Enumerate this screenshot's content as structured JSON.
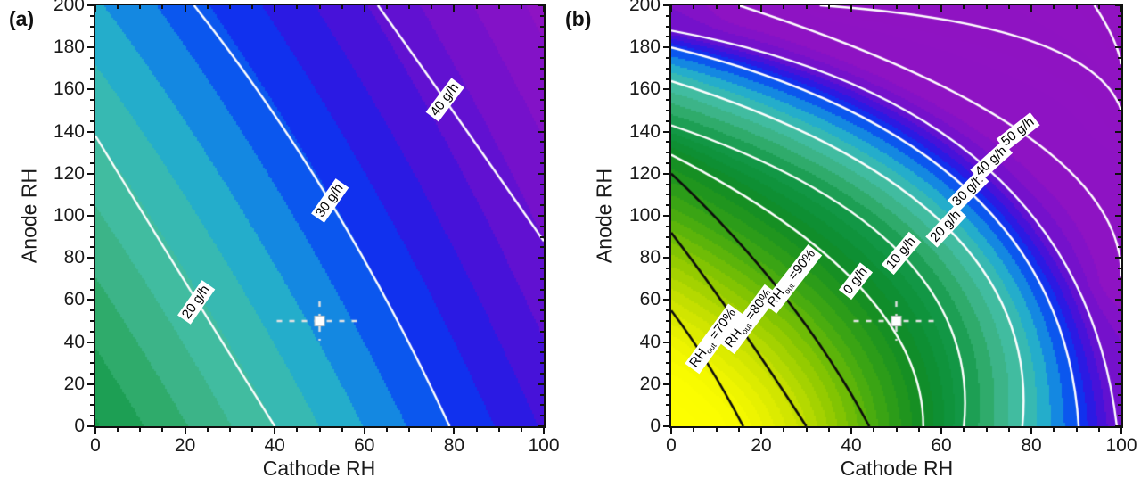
{
  "figure": {
    "background": "#ffffff",
    "description": "Two filled contour maps of water removal rate (g/h) versus Cathode RH and Anode RH"
  },
  "colormap": {
    "band_step": 2.5,
    "stops": [
      [
        -55,
        "#ffff00"
      ],
      [
        -45,
        "#fbfd00"
      ],
      [
        -40,
        "#f2f700"
      ],
      [
        -35,
        "#e2ee00"
      ],
      [
        -30,
        "#cce300"
      ],
      [
        -25,
        "#add600"
      ],
      [
        -20,
        "#8cc800"
      ],
      [
        -15,
        "#66b808"
      ],
      [
        -10,
        "#41a812"
      ],
      [
        -5,
        "#26991c"
      ],
      [
        0,
        "#118c26"
      ],
      [
        5,
        "#0e9138"
      ],
      [
        10,
        "#14994a"
      ],
      [
        13,
        "#2ba863"
      ],
      [
        16,
        "#3cb486"
      ],
      [
        19,
        "#42bda3"
      ],
      [
        22,
        "#34b8b8"
      ],
      [
        24,
        "#22acce"
      ],
      [
        26,
        "#158ee0"
      ],
      [
        28,
        "#0d65ec"
      ],
      [
        30,
        "#0a40f2"
      ],
      [
        32,
        "#1628ec"
      ],
      [
        34,
        "#2e18e2"
      ],
      [
        36,
        "#4513da"
      ],
      [
        38,
        "#5a12d4"
      ],
      [
        40,
        "#6d11ce"
      ],
      [
        42.5,
        "#7e12c9"
      ],
      [
        46,
        "#8e13c4"
      ],
      [
        78,
        "#9213c1"
      ]
    ]
  },
  "chart_data": [
    {
      "tag": "(a)",
      "type": "contour",
      "xlabel": "Cathode RH",
      "ylabel": "Anode RH",
      "xlim": [
        0,
        100
      ],
      "ylim": [
        0,
        200
      ],
      "x_ticks": [
        0,
        20,
        40,
        60,
        80,
        100
      ],
      "y_ticks": [
        0,
        20,
        40,
        60,
        80,
        100,
        120,
        140,
        160,
        180,
        200
      ],
      "minor_tick_step": 5,
      "units": "g/h",
      "marker": {
        "x": 50,
        "y": 50,
        "style": "white-square-dashed-crosshair"
      },
      "fill": {
        "model": "bilinear",
        "c0": 9.74,
        "cx": 0.256,
        "cy": 0.0744,
        "cxy": -0.000217
      },
      "contours": [
        {
          "label": "20 g/h",
          "value": 20,
          "points": [
            [
              0,
              138
            ],
            [
              22.5,
              60
            ],
            [
              40,
              0
            ]
          ],
          "label_pos": [
            22.5,
            59
          ],
          "label_rot": -55
        },
        {
          "label": "30 g/h",
          "value": 30,
          "points": [
            [
              22,
              200
            ],
            [
              52.3,
              107
            ],
            [
              79,
              0
            ]
          ],
          "label_pos": [
            52.3,
            107
          ],
          "label_rot": -55
        },
        {
          "label": "40 g/h",
          "value": 40,
          "points": [
            [
              63,
              200
            ],
            [
              78,
              155
            ],
            [
              100,
              88
            ]
          ],
          "label_pos": [
            78,
            155
          ],
          "label_rot": -53
        }
      ],
      "rh_out_contours": []
    },
    {
      "tag": "(b)",
      "type": "contour",
      "xlabel": "Cathode RH",
      "ylabel": "Anode RH",
      "xlim": [
        0,
        100
      ],
      "ylim": [
        0,
        200
      ],
      "x_ticks": [
        0,
        20,
        40,
        60,
        80,
        100
      ],
      "y_ticks": [
        0,
        20,
        40,
        60,
        80,
        100,
        120,
        140,
        160,
        180,
        200
      ],
      "minor_tick_step": 5,
      "units": "g/h",
      "marker": {
        "x": 50,
        "y": 50,
        "style": "white-square-dashed-crosshair"
      },
      "fill": {
        "model": "curve_family",
        "keys": [
          {
            "value": -50,
            "points": [
              [
                0,
                14
              ],
              [
                4,
                6
              ],
              [
                7,
                0
              ]
            ]
          },
          {
            "value": -40,
            "points": [
              [
                0,
                38
              ],
              [
                12,
                18
              ],
              [
                18,
                0
              ]
            ]
          },
          {
            "value": -30,
            "points": [
              [
                0,
                60
              ],
              [
                19,
                30
              ],
              [
                28,
                0
              ]
            ]
          },
          {
            "value": -20,
            "points": [
              [
                0,
                82
              ],
              [
                26,
                42
              ],
              [
                37,
                0
              ]
            ]
          },
          {
            "value": -10,
            "points": [
              [
                0,
                104
              ],
              [
                33,
                54
              ],
              [
                46,
                0
              ]
            ]
          },
          {
            "value": 0,
            "points": [
              [
                0,
                129
              ],
              [
                42,
                66
              ],
              [
                56,
                0
              ]
            ]
          },
          {
            "value": 10,
            "points": [
              [
                0,
                143
              ],
              [
                51,
                82
              ],
              [
                65,
                0
              ]
            ]
          },
          {
            "value": 20,
            "points": [
              [
                0,
                164
              ],
              [
                61,
                95
              ],
              [
                78,
                0
              ]
            ]
          },
          {
            "value": 30,
            "points": [
              [
                0,
                180
              ],
              [
                66,
                112
              ],
              [
                90.5,
                0
              ]
            ]
          },
          {
            "value": 40,
            "points": [
              [
                0,
                188
              ],
              [
                70,
                123
              ],
              [
                99,
                0
              ]
            ]
          },
          {
            "value": 50,
            "points": [
              [
                15,
                200
              ],
              [
                79,
                138
              ],
              [
                100,
                71
              ]
            ]
          },
          {
            "value": 60,
            "points": [
              [
                33,
                200
              ],
              [
                80,
                183
              ],
              [
                100,
                150
              ]
            ]
          },
          {
            "value": 70,
            "points": [
              [
                94,
                200
              ],
              [
                98,
                185
              ],
              [
                100,
                172
              ]
            ]
          }
        ]
      },
      "contours": [
        {
          "label": "0 g/h",
          "value": 0,
          "points": [
            [
              0,
              129
            ],
            [
              42,
              66
            ],
            [
              56,
              0
            ]
          ],
          "label_pos": [
            41,
            69
          ],
          "label_rot": -52
        },
        {
          "label": "10 g/h",
          "value": 10,
          "points": [
            [
              0,
              143
            ],
            [
              51,
              82
            ],
            [
              65,
              0
            ]
          ],
          "label_pos": [
            51,
            82
          ],
          "label_rot": -50
        },
        {
          "label": "20 g/h",
          "value": 20,
          "points": [
            [
              0,
              164
            ],
            [
              61,
              95
            ],
            [
              78,
              0
            ]
          ],
          "label_pos": [
            61,
            95
          ],
          "label_rot": -47
        },
        {
          "label": "30 g/h",
          "value": 30,
          "points": [
            [
              0,
              180
            ],
            [
              66,
              112
            ],
            [
              90.5,
              0
            ]
          ],
          "label_pos": [
            66,
            112
          ],
          "label_rot": -45
        },
        {
          "label": "40 g/h",
          "value": 40,
          "points": [
            [
              0,
              188
            ],
            [
              70,
              123
            ],
            [
              99,
              0
            ]
          ],
          "label_pos": [
            71,
            126
          ],
          "label_rot": -42
        },
        {
          "label": "50 g/h",
          "value": 50,
          "points": [
            [
              15,
              200
            ],
            [
              79,
              138
            ],
            [
              100,
              71
            ]
          ],
          "label_pos": [
            77,
            140
          ],
          "label_rot": -38
        },
        {
          "label": null,
          "value": 60,
          "points": [
            [
              33,
              200
            ],
            [
              80,
              183
            ],
            [
              100,
              150
            ]
          ],
          "label_pos": null,
          "label_rot": 0
        },
        {
          "label": null,
          "value": 70,
          "points": [
            [
              94,
              200
            ],
            [
              98,
              185
            ],
            [
              100,
              172
            ]
          ],
          "label_pos": null,
          "label_rot": 0
        }
      ],
      "rh_out_contours": [
        {
          "main": "RH",
          "sub": "out",
          "rest": " =70%",
          "value_percent": 70,
          "points": [
            [
              0,
              55
            ],
            [
              8,
              30
            ],
            [
              16,
              0
            ]
          ],
          "label_pos": [
            9.5,
            41.5
          ],
          "label_rot": -54
        },
        {
          "main": "RH",
          "sub": "out",
          "rest": " =80%",
          "value_percent": 80,
          "points": [
            [
              0,
              92
            ],
            [
              15,
              48
            ],
            [
              30,
              0
            ]
          ],
          "label_pos": [
            17.5,
            51
          ],
          "label_rot": -53
        },
        {
          "main": "RH",
          "sub": "out",
          "rest": " =90%",
          "value_percent": 90,
          "points": [
            [
              0,
              120
            ],
            [
              25,
              62
            ],
            [
              44,
              0
            ]
          ],
          "label_pos": [
            27,
            70
          ],
          "label_rot": -52
        }
      ]
    }
  ]
}
